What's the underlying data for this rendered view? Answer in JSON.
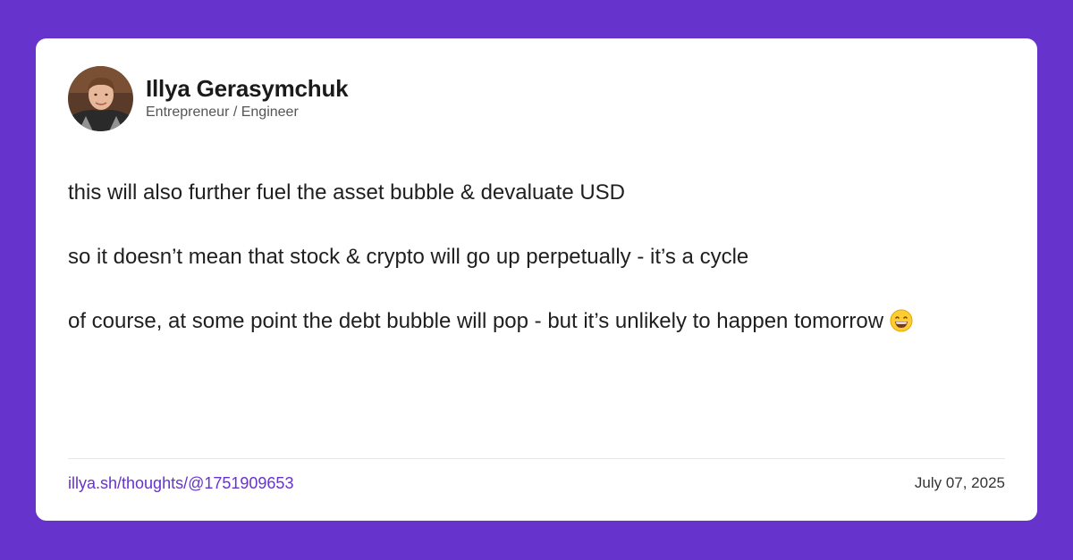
{
  "colors": {
    "background": "#6633cc",
    "card": "#ffffff",
    "link": "#6633cc",
    "text": "#1f1f1f"
  },
  "author": {
    "name": "Illya Gerasymchuk",
    "title": "Entrepreneur / Engineer",
    "avatar_icon": "profile-photo"
  },
  "post": {
    "paragraphs": [
      "this will also further fuel the asset bubble & devaluate USD",
      "so it doesn’t mean that stock & crypto will go up perpetually - it’s a cycle",
      "of course, at some point the debt bubble will pop - but it’s unlikely to happen tomorrow"
    ],
    "trailing_emoji": "grinning-face-with-smiling-eyes-emoji"
  },
  "footer": {
    "link_text": "illya.sh/thoughts/@1751909653",
    "date": "July 07, 2025"
  }
}
